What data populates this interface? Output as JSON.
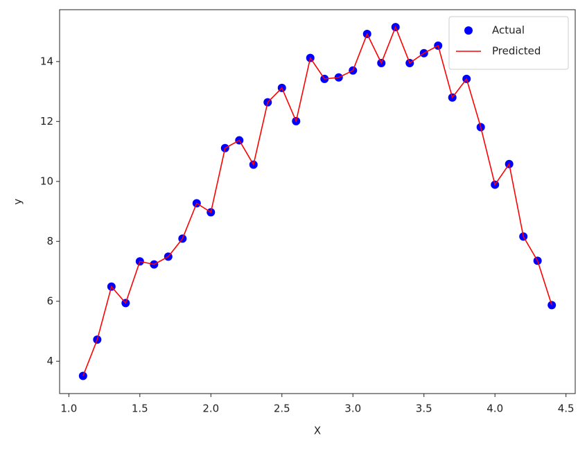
{
  "chart_data": {
    "type": "line",
    "x_label": "X",
    "y_label": "y",
    "x": [
      1.1,
      1.2,
      1.3,
      1.4,
      1.5,
      1.6,
      1.7,
      1.8,
      1.9,
      2.0,
      2.1,
      2.2,
      2.3,
      2.4,
      2.5,
      2.6,
      2.7,
      2.8,
      2.9,
      3.0,
      3.1,
      3.2,
      3.3,
      3.4,
      3.5,
      3.6,
      3.7,
      3.8,
      3.9,
      4.0,
      4.1,
      4.2,
      4.3,
      4.4
    ],
    "series": [
      {
        "name": "Actual",
        "type": "scatter",
        "color": "#0000ff",
        "values": [
          3.51,
          4.72,
          6.49,
          5.94,
          7.33,
          7.23,
          7.49,
          8.09,
          9.27,
          8.97,
          11.11,
          11.37,
          10.56,
          12.64,
          13.12,
          12.01,
          14.12,
          13.42,
          13.47,
          13.7,
          14.92,
          13.95,
          15.15,
          13.95,
          14.28,
          14.53,
          12.8,
          13.42,
          11.81,
          9.89,
          10.58,
          8.16,
          7.35,
          5.87
        ]
      },
      {
        "name": "Predicted",
        "type": "line",
        "color": "#ff0000",
        "values": [
          3.51,
          4.72,
          6.49,
          5.94,
          7.33,
          7.23,
          7.49,
          8.09,
          9.27,
          8.97,
          11.11,
          11.37,
          10.56,
          12.64,
          13.12,
          12.01,
          14.12,
          13.42,
          13.47,
          13.7,
          14.92,
          13.95,
          15.15,
          13.95,
          14.28,
          14.53,
          12.8,
          13.42,
          11.81,
          9.89,
          10.58,
          8.16,
          7.35,
          5.87
        ]
      }
    ],
    "xlim": [
      0.935,
      4.565
    ],
    "xticks": [
      {
        "value": 1,
        "label": "1.0"
      },
      1.5,
      {
        "value": 2,
        "label": "2.0"
      },
      2.5,
      {
        "value": 3,
        "label": "3.0"
      },
      3.5,
      {
        "value": 4,
        "label": "4.0"
      },
      4.5
    ],
    "ylim": [
      2.92,
      15.73
    ],
    "yticks": [
      4,
      6,
      8,
      10,
      12,
      14
    ],
    "grid": false,
    "legend": "upper right"
  }
}
